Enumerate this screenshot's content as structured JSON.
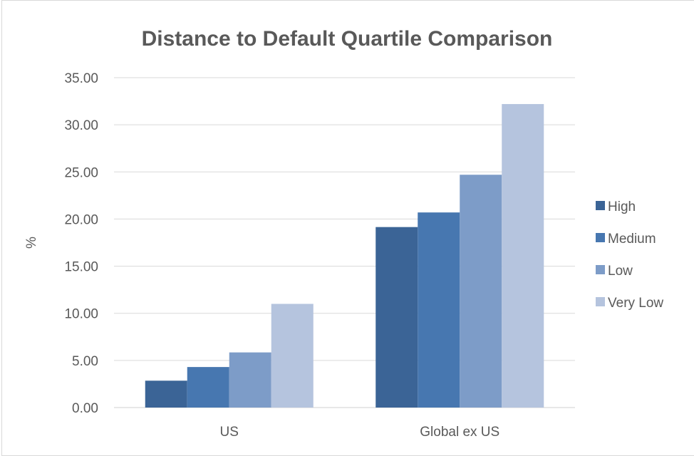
{
  "chart_data": {
    "type": "bar",
    "title": "Distance to Default Quartile Comparison",
    "xlabel": "",
    "ylabel": "%",
    "categories": [
      "US",
      "Global ex US"
    ],
    "series": [
      {
        "name": "High",
        "color": "#3b6496",
        "values": [
          2.85,
          19.15
        ]
      },
      {
        "name": "Medium",
        "color": "#4777b0",
        "values": [
          4.3,
          20.7
        ]
      },
      {
        "name": "Low",
        "color": "#7d9cc8",
        "values": [
          5.85,
          24.7
        ]
      },
      {
        "name": "Very Low",
        "color": "#b5c4de",
        "values": [
          11.0,
          32.2
        ]
      }
    ],
    "ylim": [
      0,
      35
    ],
    "yticks": [
      "0.00",
      "5.00",
      "10.00",
      "15.00",
      "20.00",
      "25.00",
      "30.00",
      "35.00"
    ],
    "grid": true,
    "legend_position": "right"
  }
}
